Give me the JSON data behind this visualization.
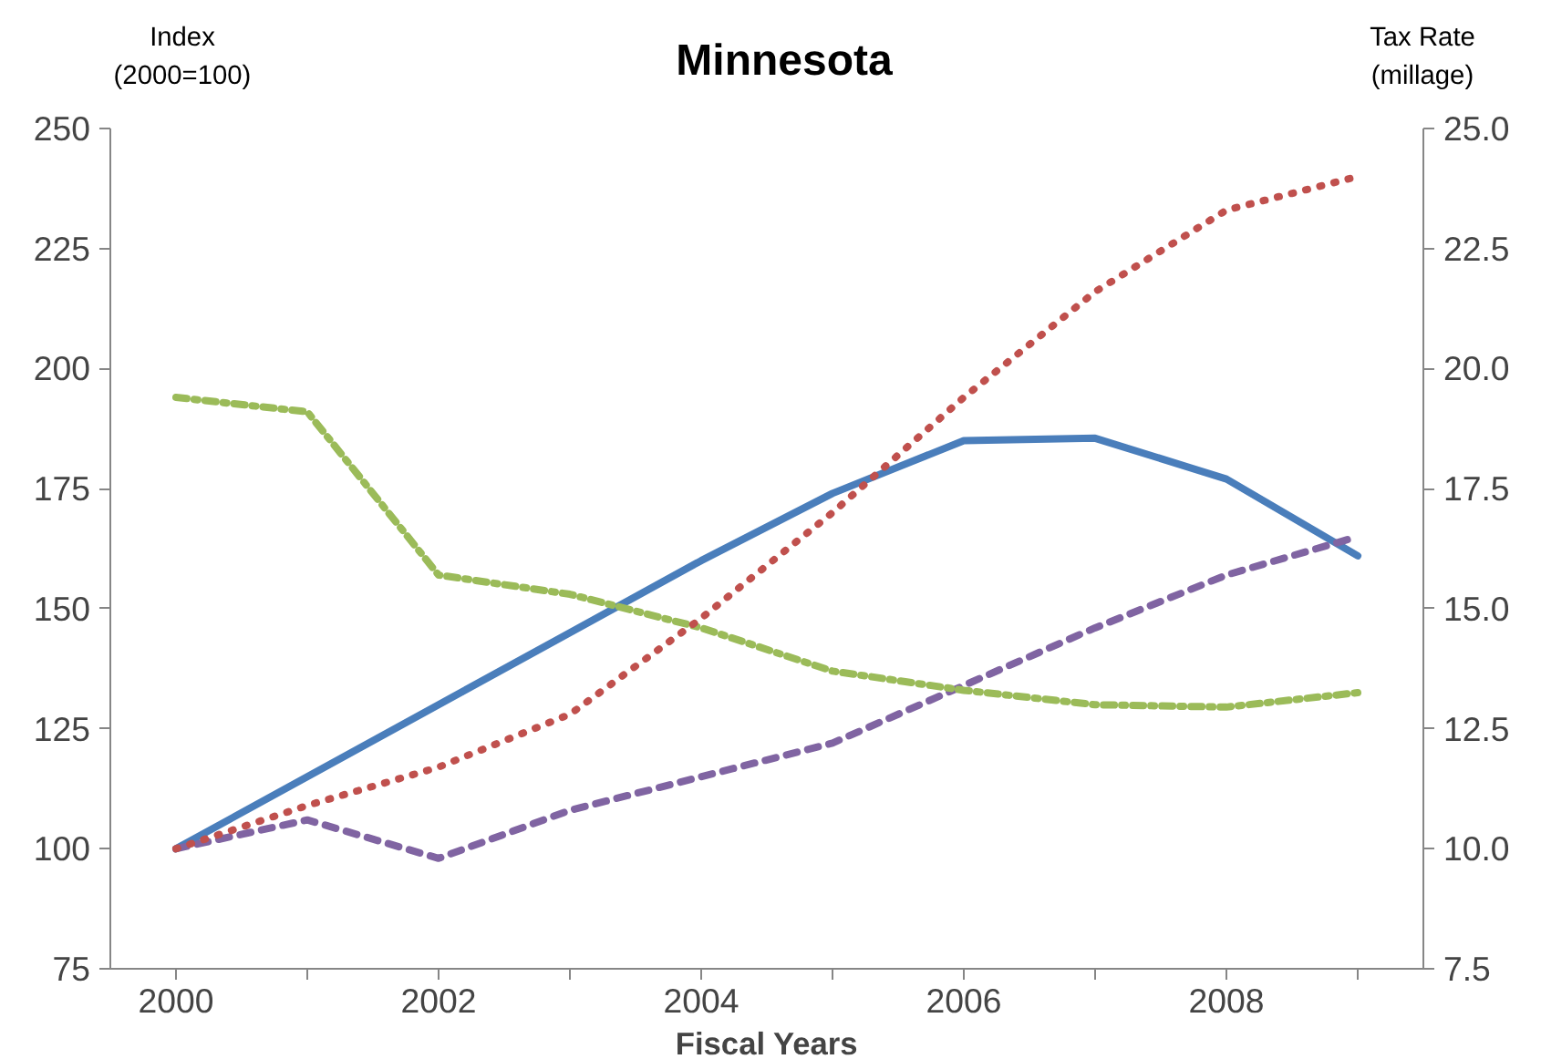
{
  "chart_data": {
    "type": "line",
    "title": "Minnesota",
    "xlabel": "Fiscal Years",
    "ylabel": "Index\n(2000=100)",
    "y2label": "Tax Rate\n(millage)",
    "categories": [
      "2000",
      null,
      "2002",
      null,
      "2004",
      null,
      "2006",
      null,
      "2008",
      null
    ],
    "ylim": [
      75,
      250
    ],
    "yticks": [
      75,
      100,
      125,
      150,
      175,
      200,
      225,
      250
    ],
    "y2lim": [
      7.5,
      25
    ],
    "y2ticks": [
      {
        "value": 7.5,
        "label": "7.5"
      },
      {
        "value": 10,
        "label": "10.0"
      },
      {
        "value": 12.5,
        "label": "12.5"
      },
      {
        "value": 15,
        "label": "15.0"
      },
      {
        "value": 17.5,
        "label": "17.5"
      },
      {
        "value": 20,
        "label": "20.0"
      },
      {
        "value": 22.5,
        "label": "22.5"
      },
      {
        "value": 25,
        "label": "25.0"
      }
    ],
    "grid": false,
    "marker": "none",
    "series": [
      {
        "color": "#4a7ebb",
        "line_style": "solid",
        "values": [
          100,
          115,
          130,
          145,
          160,
          174,
          185,
          185.5,
          177,
          161
        ]
      },
      {
        "color": "#c0504d",
        "line_style": "dotted",
        "values": [
          100,
          109,
          117,
          128,
          148,
          170,
          194,
          216,
          233,
          240
        ]
      },
      {
        "color": "#8064a2",
        "line_style": "dashed",
        "values": [
          100,
          106,
          98,
          108,
          115,
          122,
          134,
          146,
          157,
          165
        ]
      },
      {
        "color": "#9bbb59",
        "line_style": "dashdot",
        "axis": "y2",
        "values": [
          19.4,
          19.1,
          15.7,
          15.3,
          14.6,
          13.7,
          13.3,
          13.0,
          12.95,
          13.25
        ]
      }
    ]
  }
}
